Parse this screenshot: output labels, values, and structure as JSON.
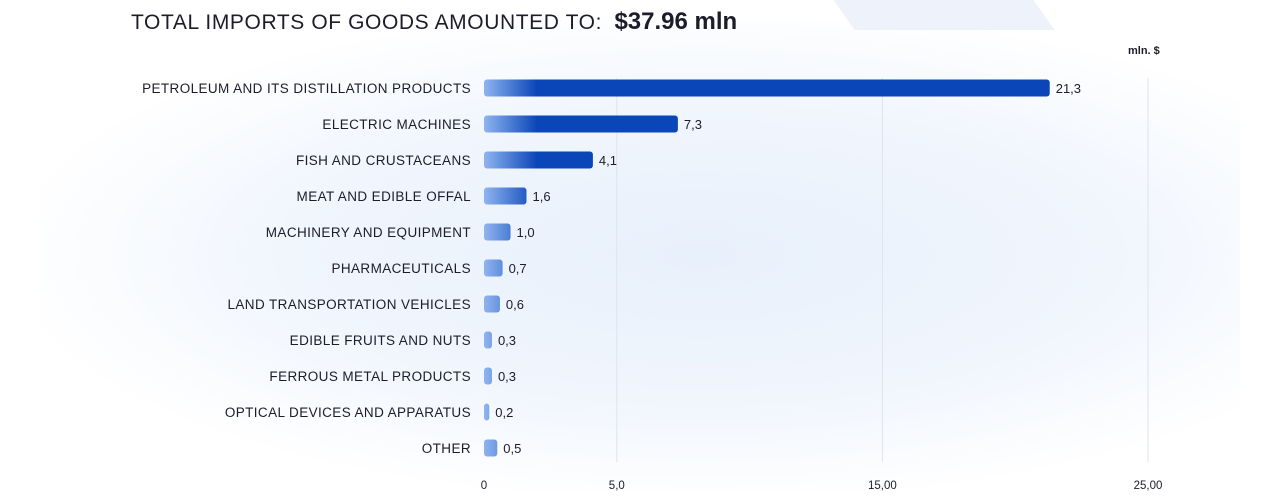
{
  "header": {
    "title_prefix": "TOTAL IMPORTS OF GOODS AMOUNTED TO:",
    "title_amount": "$37.96  mln",
    "unit_label": "mln. $"
  },
  "colors": {
    "bar_dark": "#0a46b8",
    "bar_light": "#8fb4f0",
    "grid": "#dde4ee",
    "text": "#1c1c2a"
  },
  "chart_data": {
    "type": "bar",
    "orientation": "horizontal",
    "categories": [
      "PETROLEUM AND ITS DISTILLATION PRODUCTS",
      "ELECTRIC MACHINES",
      "FISH AND CRUSTACEANS",
      "MEAT AND EDIBLE OFFAL",
      "MACHINERY AND EQUIPMENT",
      "PHARMACEUTICALS",
      "LAND TRANSPORTATION VEHICLES",
      "EDIBLE FRUITS AND NUTS",
      "FERROUS METAL PRODUCTS",
      "OPTICAL DEVICES AND APPARATUS",
      "OTHER"
    ],
    "values": [
      21.3,
      7.3,
      4.1,
      1.6,
      1.0,
      0.7,
      0.6,
      0.3,
      0.3,
      0.2,
      0.5
    ],
    "value_labels": [
      "21,3",
      "7,3",
      "4,1",
      "1,6",
      "1,0",
      "0,7",
      "0,6",
      "0,3",
      "0,3",
      "0,2",
      "0,5"
    ],
    "x_ticks": [
      0,
      5,
      15,
      25
    ],
    "x_tick_labels": [
      "0",
      "5,0",
      "15,00",
      "25,00"
    ],
    "xlim": [
      0,
      25
    ],
    "grid": true
  }
}
